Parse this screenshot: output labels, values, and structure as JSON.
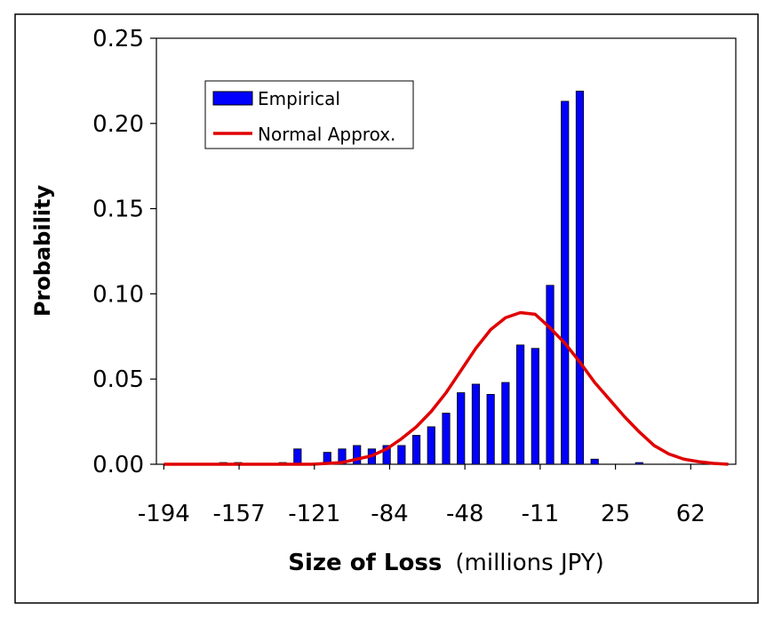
{
  "chart_data": {
    "type": "bar",
    "title": "",
    "ylabel": "Probability",
    "xlabel_main": "Size of Loss",
    "xlabel_unit": "(millions JPY)",
    "ylim": [
      0,
      0.25
    ],
    "y_ticks": [
      "0.00",
      "0.05",
      "0.10",
      "0.15",
      "0.20",
      "0.25"
    ],
    "x_tick_labels": [
      "-194",
      "-157",
      "-121",
      "-84",
      "-48",
      "-11",
      "25",
      "62"
    ],
    "legend": {
      "position": "top-left",
      "entries": [
        "Empirical",
        "Normal Approx."
      ]
    },
    "colors": {
      "bars": "#0000ff",
      "curve": "#e00000"
    },
    "series": [
      {
        "name": "Empirical",
        "kind": "bar",
        "values": [
          0,
          0,
          0,
          0,
          0.001,
          0.001,
          0,
          0,
          0.001,
          0.009,
          0,
          0.007,
          0.009,
          0.011,
          0.009,
          0.011,
          0.011,
          0.017,
          0.022,
          0.03,
          0.042,
          0.047,
          0.041,
          0.048,
          0.07,
          0.068,
          0.105,
          0.213,
          0.219,
          0.003,
          0,
          0,
          0.001,
          0,
          0,
          0,
          0,
          0,
          0
        ]
      },
      {
        "name": "Normal Approx.",
        "kind": "line",
        "values": [
          0,
          0,
          0,
          0,
          0,
          0,
          0,
          0,
          0,
          0,
          0,
          0.0005,
          0.001,
          0.003,
          0.005,
          0.009,
          0.015,
          0.022,
          0.031,
          0.042,
          0.055,
          0.068,
          0.079,
          0.086,
          0.089,
          0.088,
          0.08,
          0.071,
          0.06,
          0.048,
          0.038,
          0.028,
          0.019,
          0.011,
          0.006,
          0.003,
          0.0015,
          0.0005,
          0
        ]
      }
    ]
  }
}
